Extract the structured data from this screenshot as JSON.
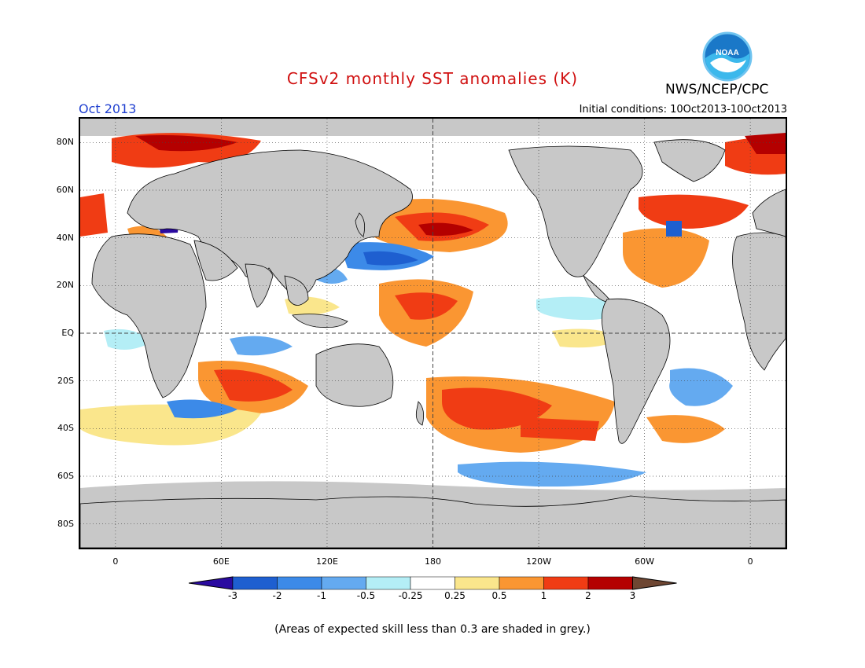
{
  "header": {
    "title": "CFSv2 monthly SST anomalies (K)",
    "org": "NWS/NCEP/CPC",
    "logo_text": "NOAA",
    "month": "Oct 2013",
    "initial_conditions": "Initial conditions: 10Oct2013-10Oct2013"
  },
  "map": {
    "projection": "equirectangular",
    "lon_range": [
      -20,
      380
    ],
    "lat_range": [
      -90,
      90
    ],
    "y_ticks": [
      {
        "lat": 80,
        "label": "80N"
      },
      {
        "lat": 60,
        "label": "60N"
      },
      {
        "lat": 40,
        "label": "40N"
      },
      {
        "lat": 20,
        "label": "20N"
      },
      {
        "lat": 0,
        "label": "EQ"
      },
      {
        "lat": -20,
        "label": "20S"
      },
      {
        "lat": -40,
        "label": "40S"
      },
      {
        "lat": -60,
        "label": "60S"
      },
      {
        "lat": -80,
        "label": "80S"
      }
    ],
    "x_ticks": [
      {
        "lon": 0,
        "label": "0"
      },
      {
        "lon": 60,
        "label": "60E"
      },
      {
        "lon": 120,
        "label": "120E"
      },
      {
        "lon": 180,
        "label": "180"
      },
      {
        "lon": 240,
        "label": "120W"
      },
      {
        "lon": 300,
        "label": "60W"
      },
      {
        "lon": 360,
        "label": "0"
      }
    ],
    "land_color": "#c8c8c8",
    "low_skill_color": "#c8c8c8",
    "grid": "dotted",
    "highlights": [
      {
        "name": "North Pacific warm anomaly",
        "lon": 195,
        "lat": 40,
        "value": 2
      },
      {
        "name": "Central Pacific warm tongue",
        "lon": 180,
        "lat": 10,
        "value": 1
      },
      {
        "name": "Northwest Pacific cool anomaly",
        "lon": 160,
        "lat": 28,
        "value": -1
      },
      {
        "name": "Southwest Pacific warm anomaly",
        "lon": 210,
        "lat": -33,
        "value": 1
      },
      {
        "name": "South Indian warm anomaly",
        "lon": 80,
        "lat": -25,
        "value": 1
      },
      {
        "name": "North Atlantic warm anomaly",
        "lon": 325,
        "lat": 45,
        "value": 1
      },
      {
        "name": "Barents Sea warm anomaly",
        "lon": 40,
        "lat": 78,
        "value": 2
      }
    ]
  },
  "colorbar": {
    "labels": [
      "-3",
      "-2",
      "-1",
      "-0.5",
      "-0.25",
      "0.25",
      "0.5",
      "1",
      "2",
      "3"
    ],
    "colors": [
      "#2a0aa0",
      "#1e5fd0",
      "#3c8ae8",
      "#64aaf0",
      "#b4eef6",
      "#ffffff",
      "#fae68c",
      "#fa9632",
      "#f03c14",
      "#b40000",
      "#6e4632"
    ]
  },
  "footnote": "(Areas of expected skill less than 0.3 are shaded in grey.)"
}
